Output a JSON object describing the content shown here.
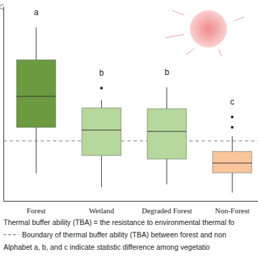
{
  "chart_data": {
    "type": "box",
    "categories": [
      "Forest",
      "Wetland",
      "Degraded Forest",
      "Non-Forest"
    ],
    "stats": {
      "whisker_low": [
        14.2,
        7.1,
        8.5,
        4.3
      ],
      "q1": [
        37.9,
        23.4,
        21.6,
        14.5
      ],
      "median": [
        53.9,
        36.5,
        35.8,
        19.5
      ],
      "q3": [
        72.7,
        47.9,
        47.5,
        25.5
      ],
      "whisker_high": [
        89.4,
        52.1,
        58.5,
        33.3
      ]
    },
    "outliers": [
      [],
      [
        58.2
      ],
      [],
      [
        43.3,
        37.9
      ]
    ],
    "colors": [
      "#6b9b3e",
      "#b6d89c",
      "#b6d89c",
      "#f9c59b"
    ],
    "group_labels": [
      "a",
      "b",
      "b",
      "c"
    ],
    "reference_line": 30.9,
    "notes": [
      "Thermal buffer ability (TBA) = the resistance to environmental thermal fo",
      "Boundary of thermal buffer ability (TBA) between forest and non",
      "Alphabet a, b, and c indicate statistic difference among vegetatio"
    ],
    "ylim": [
      0,
      100
    ],
    "tick_labels": "x"
  }
}
